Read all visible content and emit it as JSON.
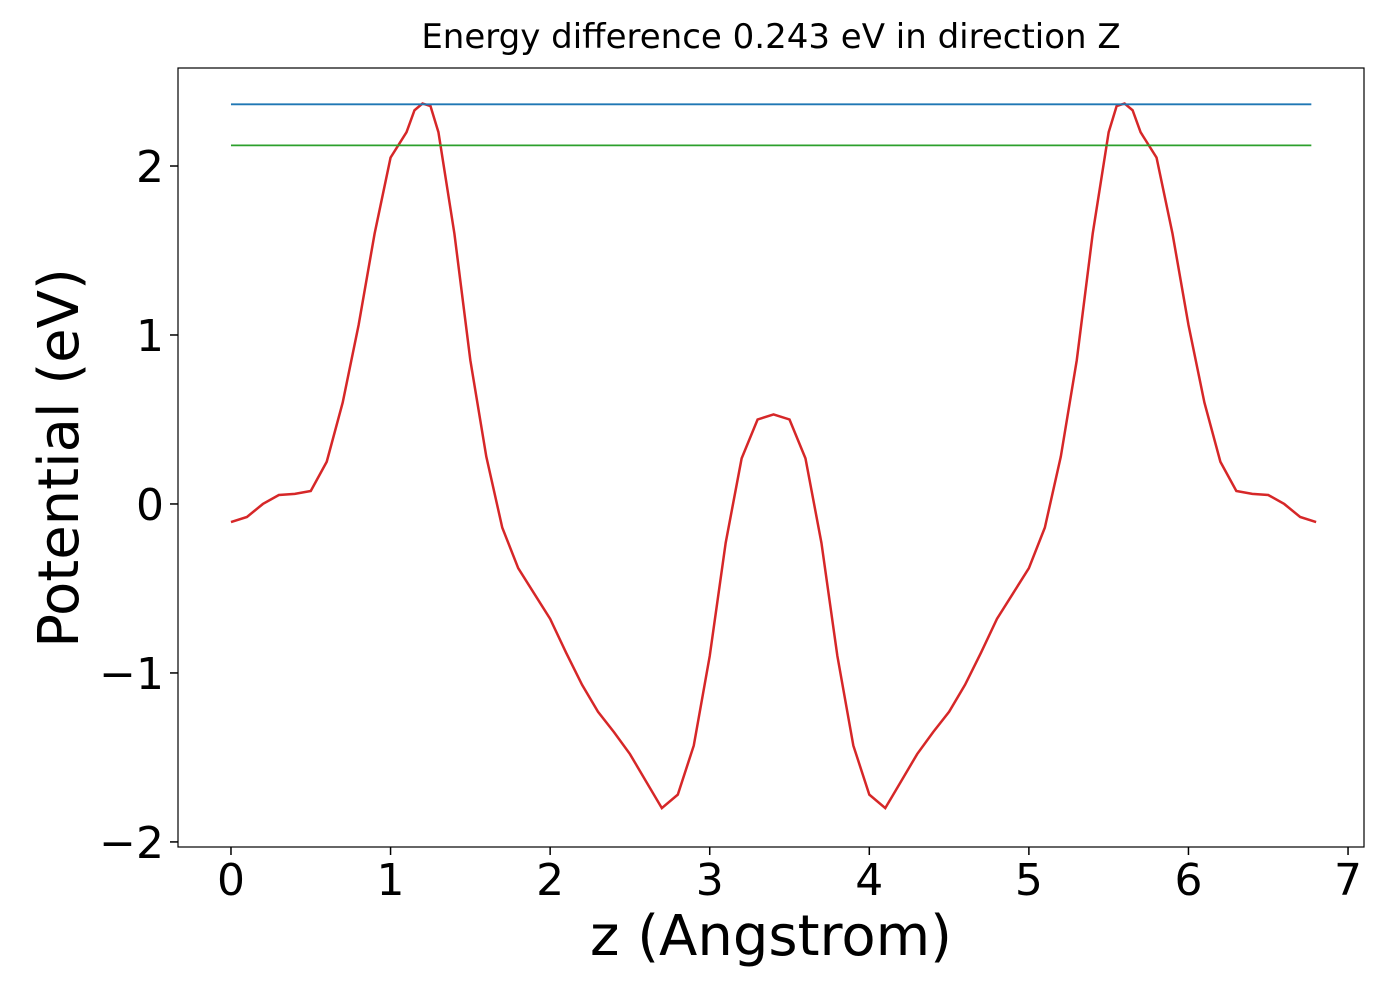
{
  "chart_data": {
    "type": "line",
    "title": "Energy difference 0.243 eV in direction Z",
    "x_label": "z (Angstrom)",
    "y_label": "Potential (eV)",
    "xlim": [
      -0.332,
      7.1
    ],
    "ylim": [
      -2.03,
      2.58
    ],
    "xticks": [
      0,
      1,
      2,
      3,
      4,
      5,
      6,
      7
    ],
    "yticks": [
      {
        "value": -2,
        "label": "−2"
      },
      {
        "value": -1,
        "label": "−1"
      },
      0,
      1,
      2
    ],
    "series": [
      {
        "color": "#d62728",
        "x": [
          0,
          0.1,
          0.2,
          0.3,
          0.4,
          0.5,
          0.6,
          0.7,
          0.8,
          0.9,
          1.0,
          1.1,
          1.15,
          1.2,
          1.25,
          1.3,
          1.4,
          1.5,
          1.6,
          1.7,
          1.8,
          1.9,
          2.0,
          2.1,
          2.2,
          2.3,
          2.4,
          2.5,
          2.6,
          2.7,
          2.8,
          2.9,
          3.0,
          3.1,
          3.2,
          3.3,
          3.4,
          3.5,
          3.6,
          3.7,
          3.8,
          3.9,
          4.0,
          4.1,
          4.2,
          4.3,
          4.4,
          4.5,
          4.6,
          4.7,
          4.8,
          4.9,
          5.0,
          5.1,
          5.2,
          5.3,
          5.4,
          5.5,
          5.55,
          5.6,
          5.65,
          5.7,
          5.8,
          5.9,
          6.0,
          6.1,
          6.2,
          6.3,
          6.4,
          6.5,
          6.6,
          6.7,
          6.8
        ],
        "values": [
          -0.107,
          -0.077,
          0.0,
          0.053,
          0.06,
          0.077,
          0.25,
          0.6,
          1.06,
          1.6,
          2.05,
          2.2,
          2.33,
          2.37,
          2.355,
          2.2,
          1.6,
          0.85,
          0.28,
          -0.14,
          -0.38,
          -0.53,
          -0.68,
          -0.88,
          -1.07,
          -1.23,
          -1.35,
          -1.48,
          -1.64,
          -1.8,
          -1.72,
          -1.43,
          -0.9,
          -0.23,
          0.27,
          0.5,
          0.53,
          0.5,
          0.27,
          -0.23,
          -0.9,
          -1.43,
          -1.72,
          -1.8,
          -1.64,
          -1.48,
          -1.35,
          -1.23,
          -1.07,
          -0.88,
          -0.68,
          -0.53,
          -0.38,
          -0.14,
          0.28,
          0.85,
          1.6,
          2.2,
          2.355,
          2.37,
          2.33,
          2.2,
          2.05,
          1.6,
          1.06,
          0.6,
          0.25,
          0.077,
          0.06,
          0.053,
          0.0,
          -0.077,
          -0.107
        ]
      },
      {
        "color": "#1f77b4",
        "x": [
          0,
          6.77
        ],
        "values": [
          2.365,
          2.365
        ]
      },
      {
        "color": "#2ca02c",
        "x": [
          0,
          6.77
        ],
        "values": [
          2.122,
          2.122
        ]
      }
    ]
  }
}
